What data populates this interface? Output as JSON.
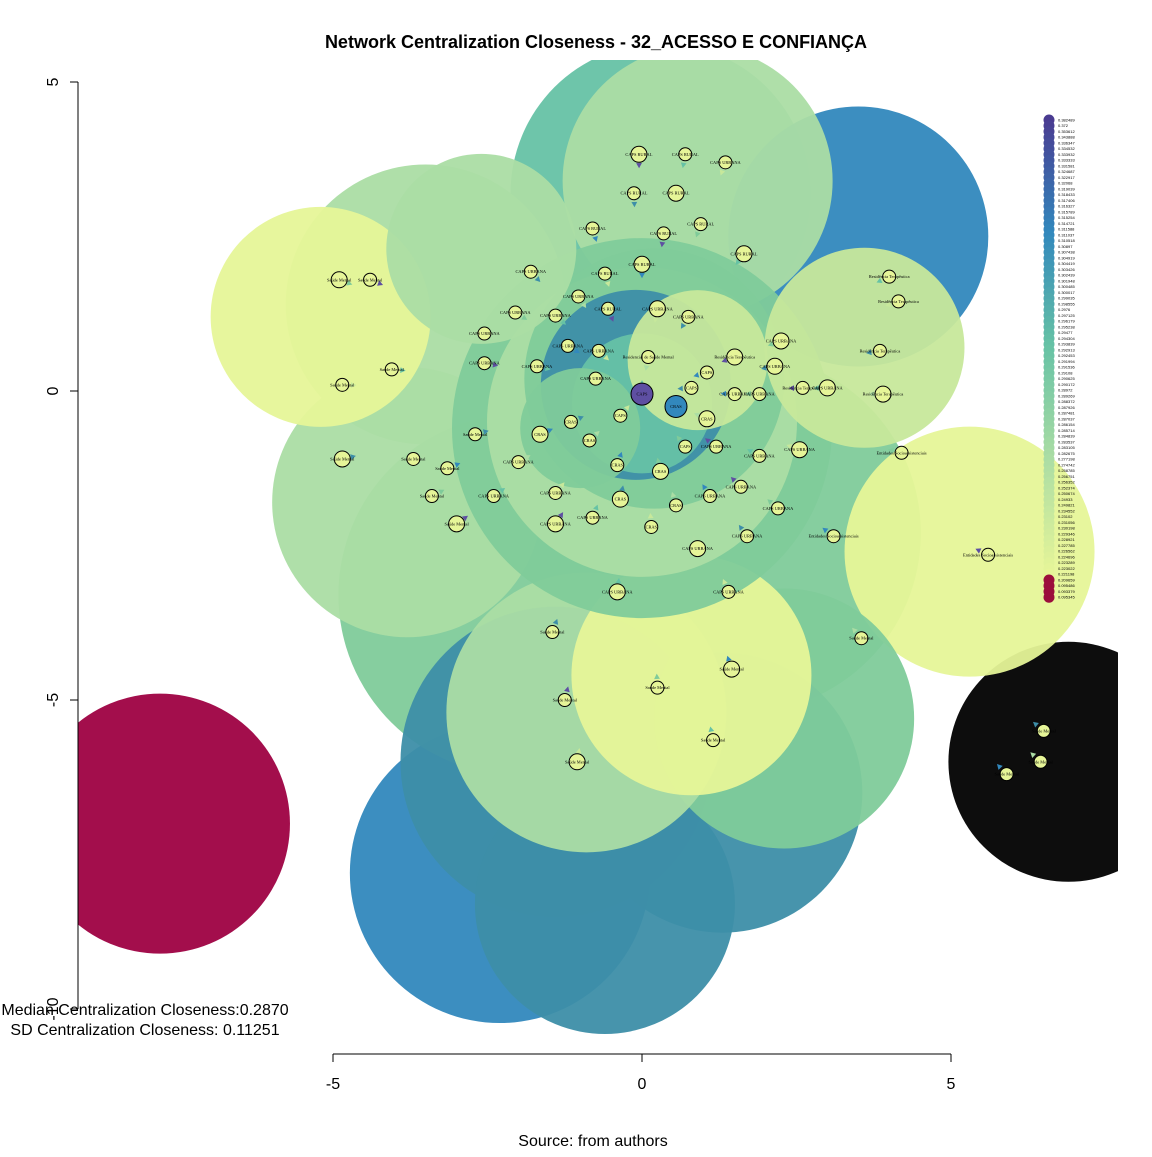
{
  "chart_data": {
    "type": "network",
    "title": "Network Centralization Closeness - 32_ACESSO E CONFIANÇA",
    "x_axis": {
      "ticks": [
        -5,
        0,
        5
      ],
      "range": [
        -5,
        5
      ]
    },
    "y_axis": {
      "ticks": [
        5,
        0,
        -5,
        -10
      ],
      "range": [
        -10,
        5
      ]
    },
    "stats": {
      "median_text": "Median Centralization Closeness:0.2870",
      "sd_text": "SD Centralization Closeness: 0.11251"
    },
    "source_text": "Source: from authors",
    "legend_position": "top-right",
    "legend": {
      "values": [
        "0.382489",
        "0.372",
        "0.353612",
        "0.343888",
        "0.336347",
        "0.334532",
        "0.333932",
        "0.333333",
        "0.331581",
        "0.324687",
        "0.322917",
        "0.32068",
        "0.319039",
        "0.318433",
        "0.317406",
        "0.316327",
        "0.315789",
        "0.315254",
        "0.314721",
        "0.311588",
        "0.311037",
        "0.310518",
        "0.30897",
        "0.307438",
        "0.304919",
        "0.304419",
        "0.303426",
        "0.302439",
        "0.301948",
        "0.300485",
        "0.300017",
        "0.299035",
        "0.298555",
        "0.2976",
        "0.297125",
        "0.296179",
        "0.295238",
        "0.29477",
        "0.294304",
        "0.293839",
        "0.292913",
        "0.292453",
        "0.291994",
        "0.291536",
        "0.29108",
        "0.290625",
        "0.290172",
        "0.28972",
        "0.289269",
        "0.288372",
        "0.287926",
        "0.287481",
        "0.287037",
        "0.286154",
        "0.285714",
        "0.284839",
        "0.283537",
        "0.283105",
        "0.282675",
        "0.277198",
        "0.274742",
        "0.258785",
        "0.256751",
        "0.256352",
        "0.252374",
        "0.250674",
        "0.24933",
        "0.249821",
        "0.234552",
        "0.23102",
        "0.231056",
        "0.230198",
        "0.229346",
        "0.228921",
        "0.227785",
        "0.226562",
        "0.224696",
        "0.223289",
        "0.223022",
        "0.221198",
        "0.209659",
        "0.095486",
        "0.093379",
        "0.095345"
      ],
      "top_color": "#4a3b91",
      "bottom_color": "#9b0e3c"
    },
    "palette": [
      "#5e4fa2",
      "#3288bd",
      "#3d8ea8",
      "#66c2a5",
      "#7fcb9a",
      "#abdda4",
      "#c7e89b",
      "#e6f598",
      "#9e0142"
    ],
    "nodes": [
      {
        "label": "CAPS RURAL",
        "x": -0.05,
        "y": 3.83,
        "v": 0.2976
      },
      {
        "label": "CAPS RURAL",
        "x": 0.7,
        "y": 3.83,
        "v": 0.2976
      },
      {
        "label": "CAPS URBANA",
        "x": 1.35,
        "y": 3.7,
        "v": 0.2976
      },
      {
        "label": "CAPS RURAL",
        "x": -0.13,
        "y": 3.2,
        "v": 0.2976
      },
      {
        "label": "CAPS RURAL",
        "x": 0.55,
        "y": 3.2,
        "v": 0.2976
      },
      {
        "label": "CAPS RURAL",
        "x": -0.8,
        "y": 2.63,
        "v": 0.2976
      },
      {
        "label": "CAPS RURAL",
        "x": 0.95,
        "y": 2.7,
        "v": 0.2976
      },
      {
        "label": "CAPS RURAL",
        "x": 0.35,
        "y": 2.55,
        "v": 0.2976
      },
      {
        "label": "CAPS RURAL",
        "x": 1.65,
        "y": 2.22,
        "v": 0.2976
      },
      {
        "label": "CAPS RURAL",
        "x": -0.6,
        "y": 1.9,
        "v": 0.2976
      },
      {
        "label": "CAPS URBANA",
        "x": -1.8,
        "y": 1.93,
        "v": 0.2976
      },
      {
        "label": "CAPS URBANA",
        "x": -1.03,
        "y": 1.53,
        "v": 0.2976
      },
      {
        "label": "CAPS RURAL",
        "x": 0.0,
        "y": 2.05,
        "v": 0.2976
      },
      {
        "label": "CAPS URBANA",
        "x": -2.05,
        "y": 1.27,
        "v": 0.2976
      },
      {
        "label": "CAPS RURAL",
        "x": -0.55,
        "y": 1.33,
        "v": 0.2976
      },
      {
        "label": "CAPS URBANA",
        "x": -1.4,
        "y": 1.22,
        "v": 0.2976
      },
      {
        "label": "CAPS URBANA",
        "x": 0.25,
        "y": 1.33,
        "v": 0.2976
      },
      {
        "label": "CAPS URBANA",
        "x": 0.75,
        "y": 1.2,
        "v": 0.2976
      },
      {
        "label": "CAPS URBANA",
        "x": -2.55,
        "y": 0.93,
        "v": 0.2976
      },
      {
        "label": "CAPS URBANA",
        "x": -1.2,
        "y": 0.73,
        "v": 0.2976
      },
      {
        "label": "CAPS URBANA",
        "x": 2.25,
        "y": 0.81,
        "v": 0.2976
      },
      {
        "label": "CAPS URBANA",
        "x": -2.55,
        "y": 0.45,
        "v": 0.2976
      },
      {
        "label": "CAPS URBANA",
        "x": -1.7,
        "y": 0.4,
        "v": 0.2976
      },
      {
        "label": "CAPS URBANA",
        "x": -0.7,
        "y": 0.65,
        "v": 0.2976
      },
      {
        "label": "CAPS URBANA",
        "x": 2.15,
        "y": 0.4,
        "v": 0.2976
      },
      {
        "label": "Residencial de Saúde Mental",
        "x": 0.1,
        "y": 0.55,
        "v": 0.2976
      },
      {
        "label": "CAPS",
        "x": 1.05,
        "y": 0.3,
        "v": 0.2976
      },
      {
        "label": "CAPS URBANA",
        "x": -0.75,
        "y": 0.2,
        "v": 0.2976
      },
      {
        "label": "Residência Terapêutica",
        "x": 1.5,
        "y": 0.55,
        "v": 0.2976
      },
      {
        "label": "CAPS",
        "x": 0.0,
        "y": -0.05,
        "v": 0.382489
      },
      {
        "label": "CRAS",
        "x": 0.55,
        "y": -0.25,
        "v": 0.372
      },
      {
        "label": "CAPS",
        "x": 0.8,
        "y": 0.05,
        "v": 0.2976
      },
      {
        "label": "CRAS",
        "x": 1.05,
        "y": -0.45,
        "v": 0.2976
      },
      {
        "label": "CAPS URBANA",
        "x": 1.5,
        "y": -0.05,
        "v": 0.2976
      },
      {
        "label": "CAPS URBANA",
        "x": 1.9,
        "y": -0.05,
        "v": 0.2976
      },
      {
        "label": "Residência Terapêutica",
        "x": 2.6,
        "y": 0.05,
        "v": 0.2976
      },
      {
        "label": "CAPS URBANA",
        "x": 3.0,
        "y": 0.05,
        "v": 0.2976
      },
      {
        "label": "CAPS",
        "x": -0.35,
        "y": -0.4,
        "v": 0.2976
      },
      {
        "label": "CRAS",
        "x": -1.15,
        "y": -0.5,
        "v": 0.2976
      },
      {
        "label": "CRAS",
        "x": -0.85,
        "y": -0.8,
        "v": 0.2976
      },
      {
        "label": "CRAS",
        "x": -1.65,
        "y": -0.7,
        "v": 0.2976
      },
      {
        "label": "CAPS",
        "x": 0.7,
        "y": -0.9,
        "v": 0.2976
      },
      {
        "label": "CAPS URBANA",
        "x": 1.2,
        "y": -0.9,
        "v": 0.2976
      },
      {
        "label": "CAPS URBANA",
        "x": 1.9,
        "y": -1.05,
        "v": 0.2976
      },
      {
        "label": "CAPS URBANA",
        "x": 2.55,
        "y": -0.95,
        "v": 0.2976
      },
      {
        "label": "Saúde Mental",
        "x": -2.7,
        "y": -0.7,
        "v": 0.2976
      },
      {
        "label": "CAPS URBANA",
        "x": -2.0,
        "y": -1.15,
        "v": 0.2976
      },
      {
        "label": "CRAS",
        "x": -0.4,
        "y": -1.2,
        "v": 0.2976
      },
      {
        "label": "CRAS",
        "x": 0.3,
        "y": -1.3,
        "v": 0.2976
      },
      {
        "label": "CAPS URBANA",
        "x": 1.6,
        "y": -1.55,
        "v": 0.2976
      },
      {
        "label": "CAPS URBANA",
        "x": -2.4,
        "y": -1.7,
        "v": 0.2976
      },
      {
        "label": "CAPS URBANA",
        "x": -1.4,
        "y": -1.65,
        "v": 0.2976
      },
      {
        "label": "CRAS",
        "x": -0.35,
        "y": -1.75,
        "v": 0.2976
      },
      {
        "label": "CRAS",
        "x": 0.55,
        "y": -1.85,
        "v": 0.2976
      },
      {
        "label": "CAPS URBANA",
        "x": 1.1,
        "y": -1.7,
        "v": 0.2976
      },
      {
        "label": "CAPS URBANA",
        "x": 2.2,
        "y": -1.9,
        "v": 0.2976
      },
      {
        "label": "CAPS URBANA",
        "x": -1.4,
        "y": -2.15,
        "v": 0.2976
      },
      {
        "label": "CAPS URBANA",
        "x": -0.8,
        "y": -2.05,
        "v": 0.2976
      },
      {
        "label": "CRAS",
        "x": 0.15,
        "y": -2.2,
        "v": 0.2976
      },
      {
        "label": "CAPS URBANA",
        "x": 1.7,
        "y": -2.35,
        "v": 0.2976
      },
      {
        "label": "CAPS URBANA",
        "x": 0.9,
        "y": -2.55,
        "v": 0.2976
      },
      {
        "label": "Entidades Socioassistenciais",
        "x": 3.1,
        "y": -2.35,
        "v": 0.2976
      },
      {
        "label": "Entidades Socioassistenciais",
        "x": 4.2,
        "y": -1.0,
        "v": 0.2976
      },
      {
        "label": "Entidades Socioassistenciais",
        "x": 5.6,
        "y": -2.65,
        "v": 0.2976
      },
      {
        "label": "CAPS URBANA",
        "x": -0.4,
        "y": -3.25,
        "v": 0.2976
      },
      {
        "label": "CAPS URBANA",
        "x": 1.4,
        "y": -3.25,
        "v": 0.2976
      },
      {
        "label": "Saúde Mental",
        "x": -1.45,
        "y": -3.9,
        "v": 0.2976
      },
      {
        "label": "Saúde Mental",
        "x": 3.55,
        "y": -4.0,
        "v": 0.2976
      },
      {
        "label": "Saúde Mental",
        "x": 1.45,
        "y": -4.5,
        "v": 0.2976
      },
      {
        "label": "Saúde Mental",
        "x": 0.25,
        "y": -4.8,
        "v": 0.2976
      },
      {
        "label": "Saúde Mental",
        "x": -1.25,
        "y": -5.0,
        "v": 0.2976
      },
      {
        "label": "Saúde Mental",
        "x": 1.15,
        "y": -5.65,
        "v": 0.2976
      },
      {
        "label": "Saúde Mental",
        "x": -1.05,
        "y": -6.0,
        "v": 0.2976
      },
      {
        "label": "Saúde Mental",
        "x": 6.5,
        "y": -5.5,
        "v": 0.2976
      },
      {
        "label": "Saúde Mental",
        "x": 6.45,
        "y": -6.0,
        "v": 0.2976
      },
      {
        "label": "Saúde Mental",
        "x": 5.9,
        "y": -6.2,
        "v": 0.2976
      },
      {
        "label": "Saúde Mental",
        "x": -4.9,
        "y": 1.8,
        "v": 0.2976
      },
      {
        "label": "Saúde Mental",
        "x": -4.4,
        "y": 1.8,
        "v": 0.2976
      },
      {
        "label": "Saúde Mental",
        "x": -4.05,
        "y": 0.35,
        "v": 0.2976
      },
      {
        "label": "Saúde Mental",
        "x": -4.85,
        "y": 0.1,
        "v": 0.2976
      },
      {
        "label": "Saúde Mental",
        "x": -4.85,
        "y": -1.1,
        "v": 0.2976
      },
      {
        "label": "Saúde Mental",
        "x": -3.7,
        "y": -1.1,
        "v": 0.2976
      },
      {
        "label": "Saúde Mental",
        "x": -3.15,
        "y": -1.25,
        "v": 0.2976
      },
      {
        "label": "Saúde Mental",
        "x": -3.4,
        "y": -1.7,
        "v": 0.2976
      },
      {
        "label": "Saúde Mental",
        "x": -3.0,
        "y": -2.15,
        "v": 0.2976
      },
      {
        "label": "Residência Terapêutica",
        "x": 4.0,
        "y": 1.85,
        "v": 0.2976
      },
      {
        "label": "Residência Terapêutica",
        "x": 4.15,
        "y": 1.45,
        "v": 0.2976
      },
      {
        "label": "Residência Terapêutica",
        "x": 3.85,
        "y": 0.65,
        "v": 0.2976
      },
      {
        "label": "Residência Terapêutica",
        "x": 3.9,
        "y": -0.05,
        "v": 0.2976
      }
    ]
  }
}
